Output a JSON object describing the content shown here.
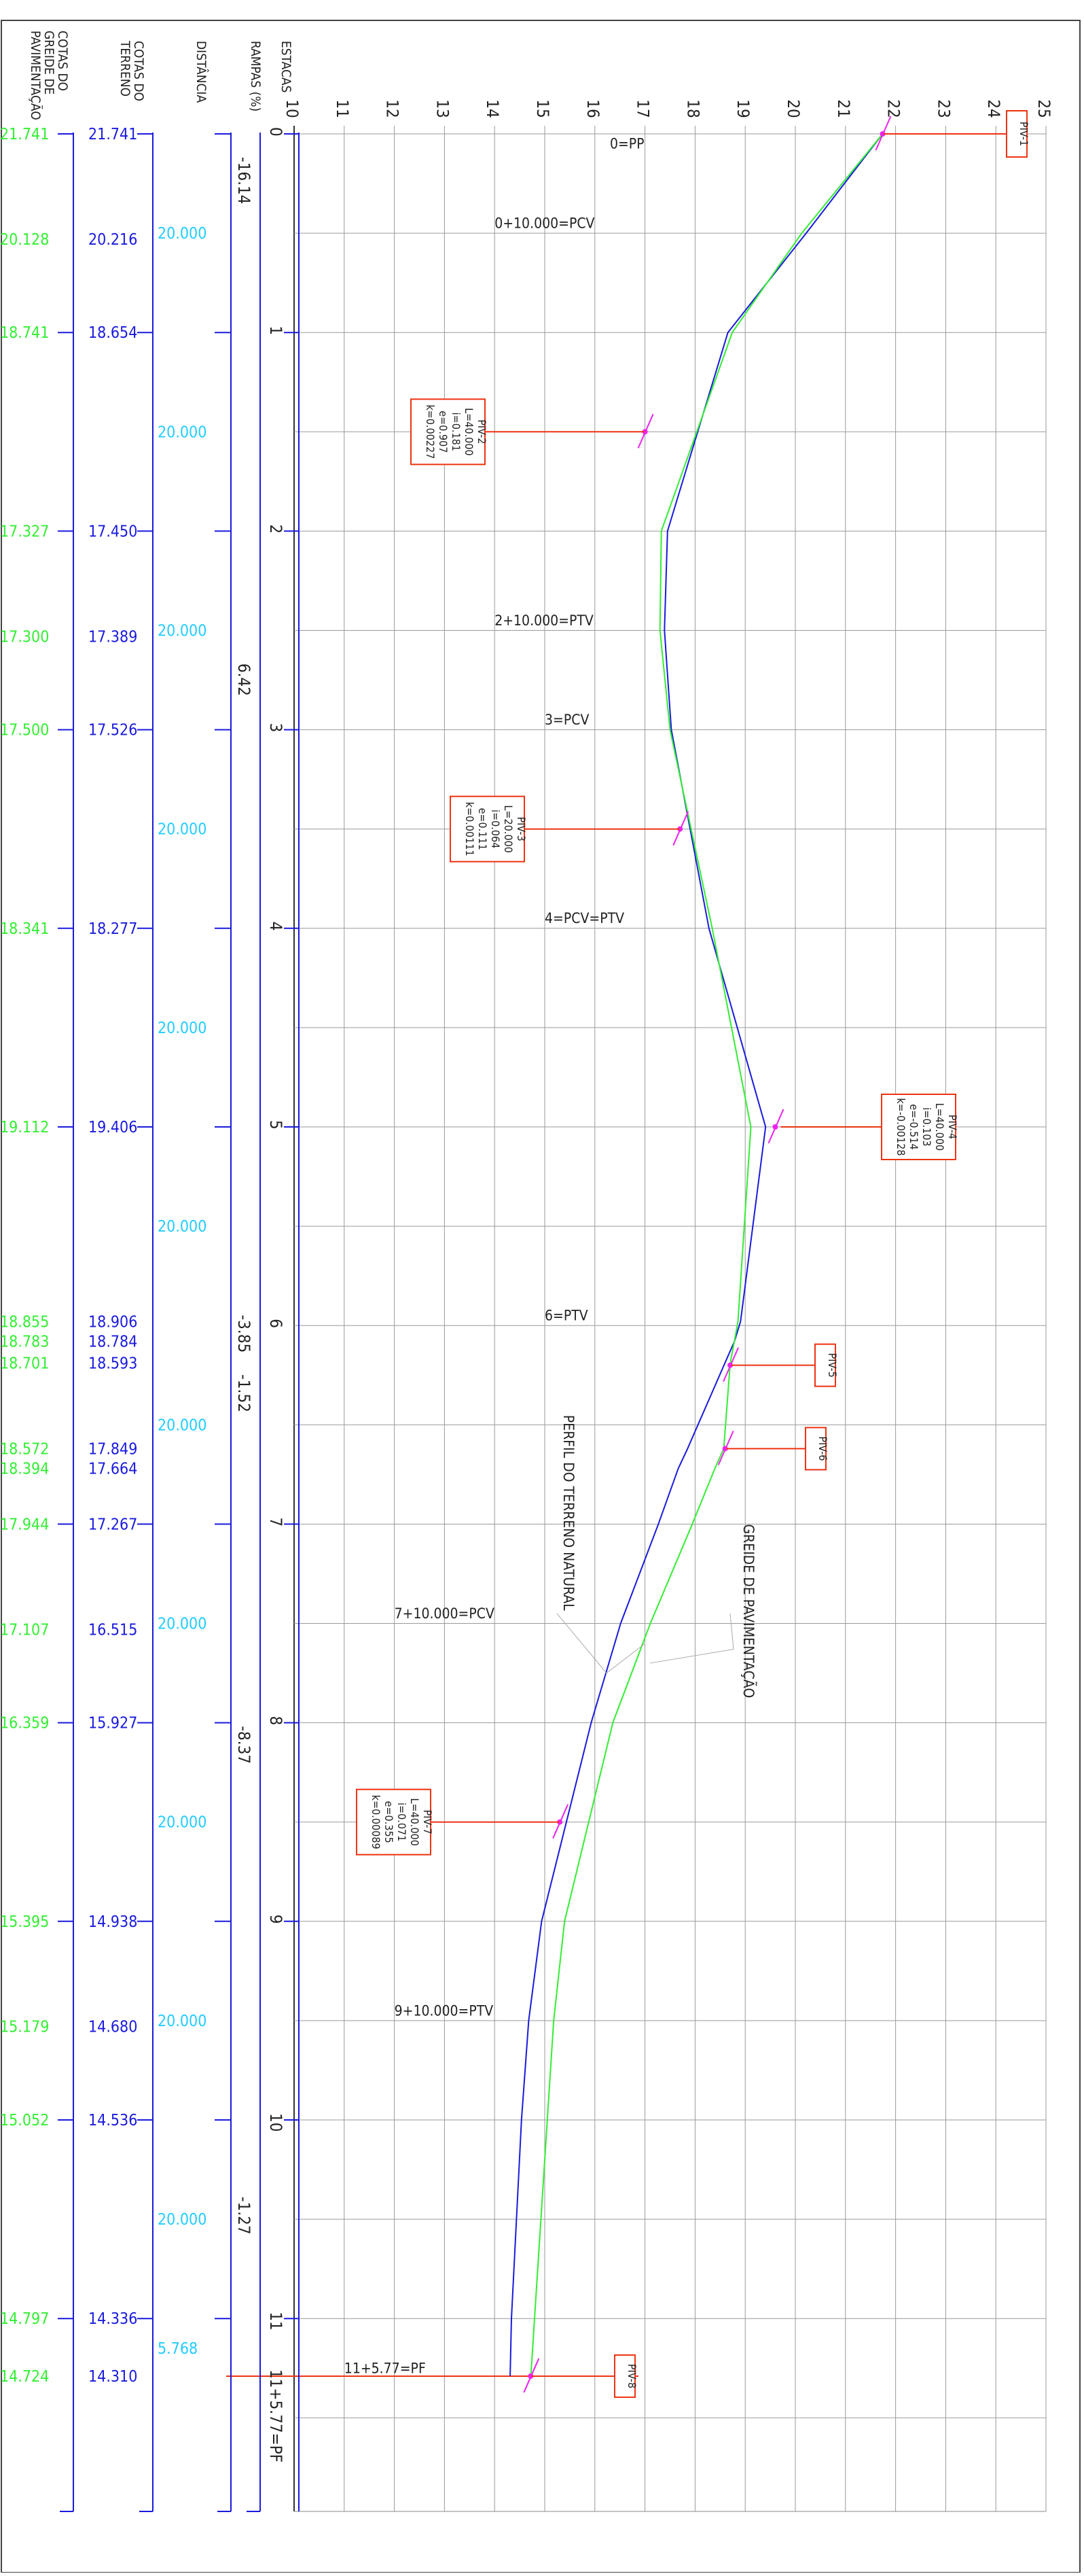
{
  "headers": {
    "pav": "COTAS DO GREIDE DE PAVIMENTAÇÃO",
    "ter": "COTAS DO TERRENO",
    "dist": "DISTÂNCIA",
    "rampas": "RAMPAS (%)",
    "estacas": "ESTACAS"
  },
  "elev_ticks": [
    "10",
    "11",
    "12",
    "13",
    "14",
    "15",
    "16",
    "17",
    "18",
    "19",
    "20",
    "21",
    "22",
    "23",
    "24",
    "25"
  ],
  "station_labels": [
    "0",
    "1",
    "2",
    "3",
    "4",
    "5",
    "6",
    "7",
    "8",
    "9",
    "10",
    "11"
  ],
  "pf_station_label": "11+5.77=PF",
  "rampas": [
    {
      "text": "-16.14",
      "s": 0.15
    },
    {
      "text": "6.42",
      "s": 2.7
    },
    {
      "text": "-3.85",
      "s": 5.98
    },
    {
      "text": "-1.52",
      "s": 6.28
    },
    {
      "text": "-8.37",
      "s": 8.05
    },
    {
      "text": "-1.27",
      "s": 10.42
    }
  ],
  "rows": [
    {
      "s": 0,
      "pav": "21.741",
      "ter": "21.741"
    },
    {
      "s": 1,
      "pav": "18.741",
      "ter": "18.654"
    },
    {
      "s": 2,
      "pav": "17.327",
      "ter": "17.450"
    },
    {
      "s": 3,
      "pav": "17.500",
      "ter": "17.526"
    },
    {
      "s": 4,
      "pav": "18.341",
      "ter": "18.277"
    },
    {
      "s": 5,
      "pav": "19.112",
      "ter": "19.406"
    },
    {
      "s": 7,
      "pav": "17.944",
      "ter": "17.267"
    },
    {
      "s": 8,
      "pav": "16.359",
      "ter": "15.927"
    },
    {
      "s": 9,
      "pav": "15.395",
      "ter": "14.938"
    },
    {
      "s": 10,
      "pav": "15.052",
      "ter": "14.536"
    },
    {
      "s": 11,
      "pav": "14.797",
      "ter": "14.336"
    }
  ],
  "extra_rows": [
    {
      "dy": 0.53,
      "pav": "20.128",
      "ter": "20.216"
    },
    {
      "dy": 2.53,
      "pav": "17.300",
      "ter": "17.389"
    },
    {
      "dy": 5.98,
      "pav": "18.855",
      "ter": "18.906"
    },
    {
      "dy": 6.08,
      "pav": "18.783",
      "ter": "18.784"
    },
    {
      "dy": 6.19,
      "pav": "18.701",
      "ter": "18.593"
    },
    {
      "dy": 6.62,
      "pav": "18.572",
      "ter": "17.849"
    },
    {
      "dy": 6.72,
      "pav": "18.394",
      "ter": "17.664"
    },
    {
      "dy": 7.53,
      "pav": "17.107",
      "ter": "16.515"
    },
    {
      "dy": 9.53,
      "pav": "15.179",
      "ter": "14.680"
    },
    {
      "dy": 11.29,
      "pav": "14.724",
      "ter": "14.310"
    }
  ],
  "distances": [
    {
      "dy": 0.5,
      "text": "20.000"
    },
    {
      "dy": 1.5,
      "text": "20.000"
    },
    {
      "dy": 2.5,
      "text": "20.000"
    },
    {
      "dy": 3.5,
      "text": "20.000"
    },
    {
      "dy": 4.5,
      "text": "20.000"
    },
    {
      "dy": 5.5,
      "text": "20.000"
    },
    {
      "dy": 6.5,
      "text": "20.000"
    },
    {
      "dy": 7.5,
      "text": "20.000"
    },
    {
      "dy": 8.5,
      "text": "20.000"
    },
    {
      "dy": 9.5,
      "text": "20.000"
    },
    {
      "dy": 10.5,
      "text": "20.000"
    },
    {
      "dy": 11.15,
      "text": "5.768"
    }
  ],
  "curve_labels": [
    {
      "text": "0=PP",
      "s": 0.05,
      "h": 16.3
    },
    {
      "text": "0+10.000=PCV",
      "s": 0.45,
      "h": 14.0
    },
    {
      "text": "2+10.000=PTV",
      "s": 2.45,
      "h": 14.0
    },
    {
      "text": "3=PCV",
      "s": 2.95,
      "h": 15.0
    },
    {
      "text": "4=PCV=PTV",
      "s": 3.95,
      "h": 15.0
    },
    {
      "text": "6=PTV",
      "s": 5.95,
      "h": 15.0
    },
    {
      "text": "7+10.000=PCV",
      "s": 7.45,
      "h": 12.0
    },
    {
      "text": "9+10.000=PTV",
      "s": 9.45,
      "h": 12.0
    },
    {
      "text": "11+5.77=PF",
      "s": 11.25,
      "h": 11.0
    }
  ],
  "piv": [
    {
      "id": "PIV-1",
      "s": 0,
      "h": 21.741,
      "lines": [
        "PIV-1"
      ]
    },
    {
      "id": "PIV-2",
      "s": 1.5,
      "h": 17.0,
      "lines": [
        "PIV-2",
        "L=40.000",
        "i=0.181",
        "e=0.907",
        "k=0.00227"
      ]
    },
    {
      "id": "PIV-3",
      "s": 3.5,
      "h": 17.7,
      "lines": [
        "PIV-3",
        "L=20.000",
        "i=0.064",
        "e=0.111",
        "k=0.00111"
      ]
    },
    {
      "id": "PIV-4",
      "s": 5.0,
      "h": 19.6,
      "lines": [
        "PIV-4",
        "L=40.000",
        "i=0.103",
        "e=-0.514",
        "k=-0.00128"
      ]
    },
    {
      "id": "PIV-5",
      "s": 6.2,
      "h": 18.7,
      "lines": [
        "PIV-5"
      ]
    },
    {
      "id": "PIV-6",
      "s": 6.62,
      "h": 18.6,
      "lines": [
        "PIV-6"
      ]
    },
    {
      "id": "PIV-7",
      "s": 8.5,
      "h": 15.3,
      "lines": [
        "PIV-7",
        "L=40.000",
        "i=0.071",
        "e=0.355",
        "k=0.00089"
      ]
    },
    {
      "id": "PIV-8",
      "s": 11.29,
      "h": 14.72,
      "lines": [
        "PIV-8"
      ]
    }
  ],
  "annotations": {
    "terreno": "PERFIL DO TERRENO NATURAL",
    "greide": "GREIDE DE PAVIMENTAÇÃO"
  },
  "colors": {
    "terrain": "#1a1add",
    "grade": "#33ee33",
    "piv": "#ee3311",
    "vertex": "#ee22ee",
    "distance": "#22ccff",
    "grid": "#9a9a9a"
  },
  "chart_data": {
    "type": "line",
    "xlabel": "ESTACAS",
    "x_axis": "station",
    "y_axis": "elevation",
    "ylim": [
      10,
      25
    ],
    "series": [
      {
        "name": "PERFIL DO TERRENO NATURAL",
        "color": "#1a1add",
        "points": [
          [
            0,
            21.741
          ],
          [
            0.5,
            20.216
          ],
          [
            1,
            18.654
          ],
          [
            2,
            17.45
          ],
          [
            2.5,
            17.389
          ],
          [
            3,
            17.526
          ],
          [
            4,
            18.277
          ],
          [
            5,
            19.406
          ],
          [
            5.98,
            18.906
          ],
          [
            6.08,
            18.784
          ],
          [
            6.19,
            18.593
          ],
          [
            6.62,
            17.849
          ],
          [
            6.72,
            17.664
          ],
          [
            7,
            17.267
          ],
          [
            7.5,
            16.515
          ],
          [
            8,
            15.927
          ],
          [
            9,
            14.938
          ],
          [
            9.5,
            14.68
          ],
          [
            10,
            14.536
          ],
          [
            11,
            14.336
          ],
          [
            11.29,
            14.31
          ]
        ]
      },
      {
        "name": "GREIDE DE PAVIMENTAÇÃO",
        "color": "#33ee33",
        "points": [
          [
            0,
            21.741
          ],
          [
            0.5,
            20.128
          ],
          [
            1,
            18.741
          ],
          [
            2,
            17.327
          ],
          [
            2.5,
            17.3
          ],
          [
            3,
            17.5
          ],
          [
            4,
            18.341
          ],
          [
            5,
            19.112
          ],
          [
            5.98,
            18.855
          ],
          [
            6.08,
            18.783
          ],
          [
            6.19,
            18.701
          ],
          [
            6.62,
            18.572
          ],
          [
            6.72,
            18.394
          ],
          [
            7,
            17.944
          ],
          [
            7.5,
            17.107
          ],
          [
            8,
            16.359
          ],
          [
            9,
            15.395
          ],
          [
            9.5,
            15.179
          ],
          [
            10,
            15.052
          ],
          [
            11,
            14.797
          ],
          [
            11.29,
            14.724
          ]
        ]
      }
    ]
  }
}
